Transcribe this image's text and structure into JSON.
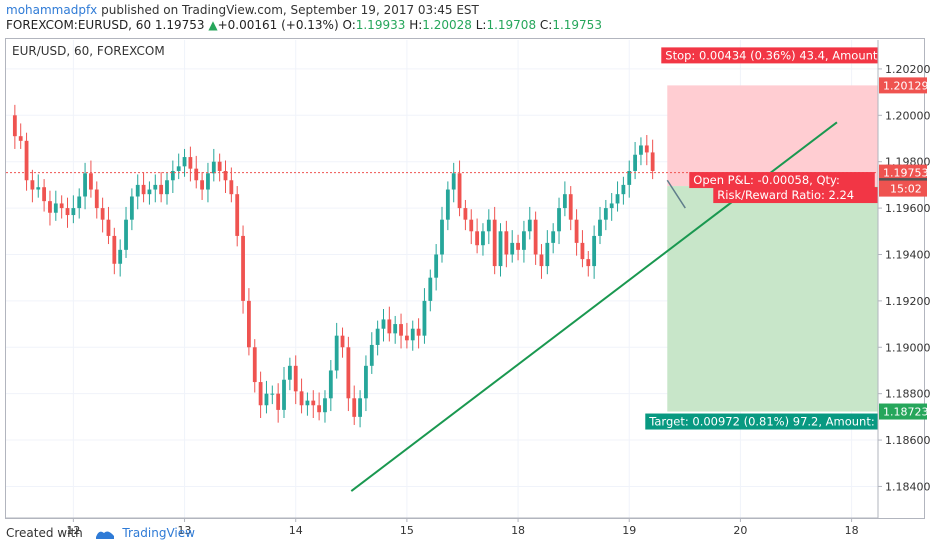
{
  "header": {
    "author": "mohammadpfx",
    "published": " published on TradingView.com, September 19, 2017 03:45 EST",
    "symbol": "FOREXCOM:EURUSD, 60",
    "last": "1.19753",
    "change": "+0.00161 (+0.13%)",
    "o_label": "O:",
    "o": "1.19933",
    "h_label": "H:",
    "h": "1.20028",
    "l_label": "L:",
    "l": "1.19708",
    "c_label": "C:",
    "c": "1.19753"
  },
  "footer": {
    "created_with": "Created with",
    "brand": "TradingView"
  },
  "colors": {
    "up": "#26a69a",
    "down": "#ef5350",
    "trend": "#1a9850",
    "stop_zone": "#ffcdd2",
    "target_zone": "#c8e6c9"
  },
  "chart_data": {
    "type": "candlestick",
    "title": "EUR/USD, 60, FOREXCOM",
    "ylim": [
      1.1832,
      1.2026
    ],
    "y_ticks": [
      "1.20200",
      "1.20000",
      "1.19800",
      "1.19600",
      "1.19400",
      "1.19200",
      "1.19000",
      "1.18800",
      "1.18600",
      "1.18400"
    ],
    "x_ticks": [
      "12",
      "13",
      "14",
      "15",
      "18",
      "19",
      "20",
      "18"
    ],
    "x_tick_positions": [
      11,
      30,
      49,
      68,
      87,
      106,
      125,
      144
    ],
    "x_max": 148,
    "closes": [
      1.2,
      1.1991,
      1.1989,
      1.1972,
      1.1968,
      1.1969,
      1.1963,
      1.1958,
      1.1962,
      1.196,
      1.1957,
      1.196,
      1.1965,
      1.1975,
      1.1968,
      1.196,
      1.1955,
      1.1948,
      1.1936,
      1.1942,
      1.1955,
      1.1965,
      1.197,
      1.1966,
      1.1968,
      1.197,
      1.1966,
      1.1972,
      1.1976,
      1.1978,
      1.1982,
      1.1977,
      1.1972,
      1.1968,
      1.1975,
      1.198,
      1.1976,
      1.1972,
      1.1966,
      1.1948,
      1.192,
      1.19,
      1.1885,
      1.1875,
      1.188,
      1.188,
      1.1873,
      1.1886,
      1.1892,
      1.1881,
      1.1875,
      1.1877,
      1.1875,
      1.1872,
      1.1878,
      1.189,
      1.1905,
      1.19,
      1.1878,
      1.187,
      1.1878,
      1.1892,
      1.1901,
      1.1908,
      1.1912,
      1.1906,
      1.191,
      1.1905,
      1.1903,
      1.1908,
      1.1905,
      1.192,
      1.193,
      1.194,
      1.1955,
      1.1968,
      1.1975,
      1.196,
      1.1955,
      1.195,
      1.1944,
      1.195,
      1.1955,
      1.1935,
      1.195,
      1.194,
      1.1945,
      1.1942,
      1.195,
      1.1955,
      1.194,
      1.1935,
      1.1945,
      1.195,
      1.196,
      1.1966,
      1.1955,
      1.1945,
      1.1938,
      1.1935,
      1.1948,
      1.1955,
      1.196,
      1.1962,
      1.1966,
      1.197,
      1.1976,
      1.1983,
      1.1987,
      1.1984,
      1.1976
    ],
    "trendline": {
      "x1": 58.5,
      "y1": 1.1838,
      "x2": 141.5,
      "y2": 1.1997
    },
    "current_price_line": 1.19753,
    "position": {
      "entry": 1.19695,
      "stop": 1.20129,
      "target": 1.18723,
      "x_start": 112.5,
      "x_end": 148,
      "stop_label": "Stop: 0.00434 (0.36%) 43.4, Amount: ",
      "target_label": "Target: 0.00972 (0.81%) 97.2, Amount: ",
      "pnl_label": "Open P&L: -0.00058, Qty: ",
      "rr_label": "Risk/Reward Ratio: 2.24"
    },
    "price_tags": [
      {
        "value": 1.20129,
        "label": "1.20129",
        "color": "#ef5350"
      },
      {
        "value": 1.19753,
        "label": "1.19753",
        "color": "#ef5350"
      },
      {
        "value": 1.19695,
        "label": "1.19695",
        "color": "#555555"
      },
      {
        "value": 1.18723,
        "label": "1.18723",
        "color": "#26a65b"
      }
    ],
    "countdown": "15:02"
  }
}
